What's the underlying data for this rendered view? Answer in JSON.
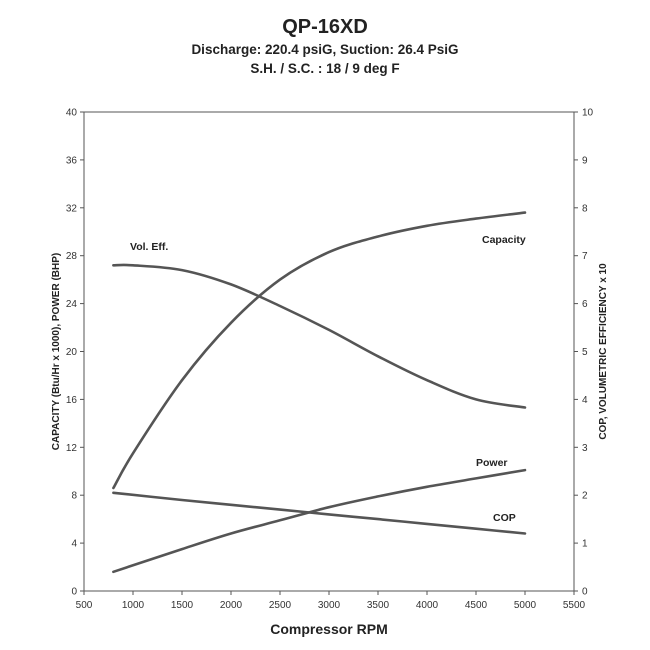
{
  "chart_data": {
    "type": "line",
    "title": "QP-16XD",
    "subtitles": [
      "Discharge: 220.4 psiG, Suction: 26.4 PsiG",
      "S.H. / S.C. : 18 / 9 deg F"
    ],
    "xlabel": "Compressor RPM",
    "ylabel_left": "CAPACITY (Btu/Hr x 1000), POWER (BHP)",
    "ylabel_right": "COP, VOLUMETRIC EFFICIENCY x 10",
    "xlim": [
      500,
      5500
    ],
    "ylim_left": [
      0,
      40
    ],
    "ylim_right": [
      0,
      10
    ],
    "x_ticks": [
      "500",
      "1000",
      "1500",
      "2000",
      "2500",
      "3000",
      "3500",
      "4000",
      "4500",
      "5000",
      "5500"
    ],
    "y_left_ticks": [
      "0",
      "4",
      "8",
      "12",
      "16",
      "20",
      "24",
      "28",
      "32",
      "36",
      "40"
    ],
    "y_right_ticks": [
      "0",
      "1",
      "2",
      "3",
      "4",
      "5",
      "6",
      "7",
      "8",
      "9",
      "10"
    ],
    "grid": false,
    "series": [
      {
        "name": "Capacity",
        "axis": "left",
        "x": [
          800,
          1000,
          1500,
          2000,
          2500,
          3000,
          3500,
          4000,
          4500,
          5000
        ],
        "y": [
          8.6,
          11.5,
          17.6,
          22.4,
          26.0,
          28.3,
          29.6,
          30.5,
          31.1,
          31.6
        ]
      },
      {
        "name": "Vol. Eff.",
        "axis": "right",
        "x": [
          800,
          1000,
          1500,
          2000,
          2500,
          3000,
          3500,
          4000,
          4500,
          5000
        ],
        "y": [
          6.8,
          6.8,
          6.7,
          6.4,
          5.95,
          5.45,
          4.9,
          4.4,
          4.0,
          3.83
        ]
      },
      {
        "name": "Power",
        "axis": "left",
        "x": [
          800,
          1500,
          2000,
          2500,
          3000,
          3500,
          4000,
          4500,
          5000
        ],
        "y": [
          1.6,
          3.5,
          4.8,
          5.9,
          7.0,
          7.9,
          8.7,
          9.4,
          10.1
        ]
      },
      {
        "name": "COP",
        "axis": "right",
        "x": [
          800,
          1500,
          2000,
          2500,
          3000,
          3500,
          4000,
          4500,
          5000
        ],
        "y": [
          2.05,
          1.9,
          1.8,
          1.7,
          1.6,
          1.5,
          1.4,
          1.3,
          1.2
        ]
      }
    ]
  }
}
